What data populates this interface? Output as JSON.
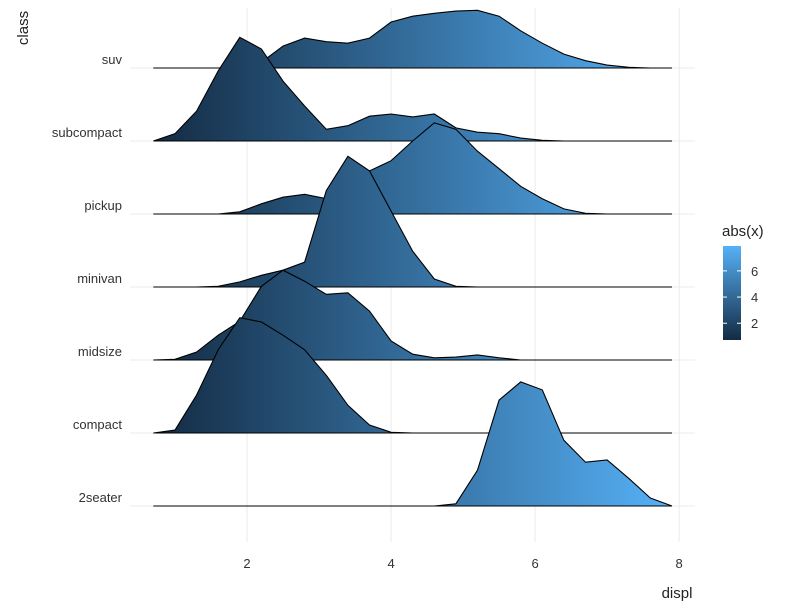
{
  "chart_data": {
    "type": "ridgeline",
    "x_label": "displ",
    "y_label": "class",
    "categories": [
      "2seater",
      "compact",
      "midsize",
      "minivan",
      "pickup",
      "subcompact",
      "suv"
    ],
    "x": [
      0.7,
      1.0,
      1.3,
      1.6,
      1.9,
      2.2,
      2.5,
      2.8,
      3.1,
      3.4,
      3.7,
      4.0,
      4.3,
      4.6,
      4.9,
      5.2,
      5.5,
      5.8,
      6.1,
      6.4,
      6.7,
      7.0,
      7.3,
      7.6,
      7.9
    ],
    "series": [
      {
        "name": "2seater",
        "values": [
          0,
          0,
          0,
          0,
          0,
          0,
          0,
          0,
          0,
          0,
          0,
          0,
          0,
          0,
          0.03,
          0.49,
          1.45,
          1.7,
          1.59,
          0.9,
          0.6,
          0.63,
          0.38,
          0.11,
          0
        ]
      },
      {
        "name": "compact",
        "values": [
          0,
          0.04,
          0.52,
          1.14,
          1.58,
          1.52,
          1.34,
          1.14,
          0.79,
          0.38,
          0.11,
          0.01,
          0,
          0,
          0,
          0,
          0,
          0,
          0,
          0,
          0,
          0,
          0,
          0,
          0
        ]
      },
      {
        "name": "midsize",
        "values": [
          0,
          0.01,
          0.11,
          0.34,
          0.53,
          1.01,
          1.23,
          1.08,
          0.9,
          0.92,
          0.67,
          0.26,
          0.08,
          0.03,
          0.04,
          0.07,
          0.03,
          0,
          0,
          0,
          0,
          0,
          0,
          0,
          0
        ]
      },
      {
        "name": "minivan",
        "values": [
          0,
          0,
          0,
          0.01,
          0.07,
          0.16,
          0.23,
          0.34,
          1.32,
          1.79,
          1.59,
          1.04,
          0.49,
          0.11,
          0.01,
          0,
          0,
          0,
          0,
          0,
          0,
          0,
          0,
          0,
          0
        ]
      },
      {
        "name": "pickup",
        "values": [
          0,
          0,
          0,
          0,
          0.03,
          0.14,
          0.23,
          0.27,
          0.21,
          0.27,
          0.59,
          0.73,
          1.0,
          1.25,
          1.16,
          0.86,
          0.62,
          0.38,
          0.21,
          0.07,
          0.01,
          0,
          0,
          0,
          0
        ]
      },
      {
        "name": "subcompact",
        "values": [
          0,
          0.1,
          0.41,
          0.96,
          1.42,
          1.26,
          0.82,
          0.48,
          0.16,
          0.21,
          0.34,
          0.37,
          0.33,
          0.37,
          0.18,
          0.12,
          0.1,
          0.04,
          0.01,
          0,
          0,
          0,
          0,
          0,
          0
        ]
      },
      {
        "name": "suv",
        "values": [
          0,
          0,
          0,
          0,
          0.01,
          0.08,
          0.3,
          0.41,
          0.36,
          0.34,
          0.41,
          0.63,
          0.71,
          0.75,
          0.78,
          0.79,
          0.71,
          0.51,
          0.34,
          0.19,
          0.1,
          0.04,
          0.01,
          0,
          0
        ]
      }
    ],
    "xlim": [
      0.375,
      8.22
    ],
    "xticks": [
      2,
      4,
      6,
      8
    ],
    "grid": true,
    "fill": {
      "title": "abs(x)",
      "low": "#132B43",
      "high": "#56B1F7",
      "range": [
        0.72,
        7.9
      ],
      "ticks": [
        2,
        4,
        6
      ]
    }
  }
}
